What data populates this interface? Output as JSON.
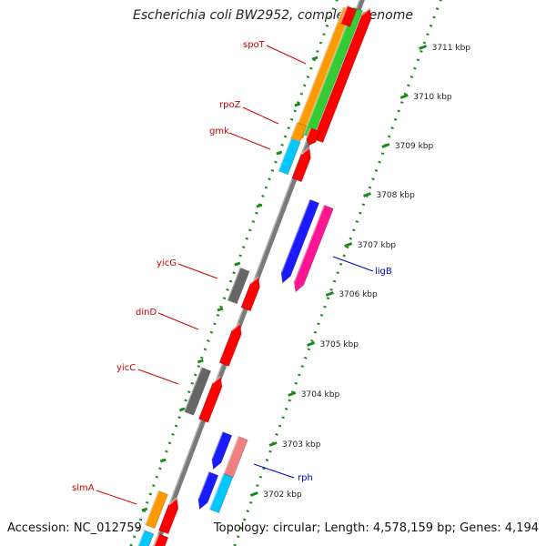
{
  "title": "Escherichia coli BW2952, complete genome",
  "footer": {
    "accession": "Accession: NC_012759",
    "topology": "Topology: circular; Length: 4,578,159 bp; Genes: 4,194"
  },
  "colors": {
    "red": "#ff0000",
    "orange": "#ff9900",
    "green": "#33cc33",
    "cyan": "#00c8ff",
    "gray": "#666666",
    "blue": "#1a1aff",
    "magenta": "#ff1493",
    "pink": "#f08080",
    "tick_green": "#1a8a1a",
    "backbone": "#7a7a7a",
    "label_red": "#cc0000",
    "label_blue": "#0000cc"
  },
  "ticks": [
    {
      "label": "3711 kbp"
    },
    {
      "label": "3710 kbp"
    },
    {
      "label": "3709 kbp"
    },
    {
      "label": "3708 kbp"
    },
    {
      "label": "3707 kbp"
    },
    {
      "label": "3706 kbp"
    },
    {
      "label": "3705 kbp"
    },
    {
      "label": "3704 kbp"
    },
    {
      "label": "3703 kbp"
    },
    {
      "label": "3702 kbp"
    }
  ],
  "gene_labels": [
    {
      "name": "spoT",
      "color": "label_red"
    },
    {
      "name": "rpoZ",
      "color": "label_red"
    },
    {
      "name": "gmk",
      "color": "label_red"
    },
    {
      "name": "yicG",
      "color": "label_red"
    },
    {
      "name": "dinD",
      "color": "label_red"
    },
    {
      "name": "yicC",
      "color": "label_red"
    },
    {
      "name": "slmA",
      "color": "label_red"
    },
    {
      "name": "ligB",
      "color": "label_blue"
    },
    {
      "name": "rph",
      "color": "label_blue"
    }
  ]
}
